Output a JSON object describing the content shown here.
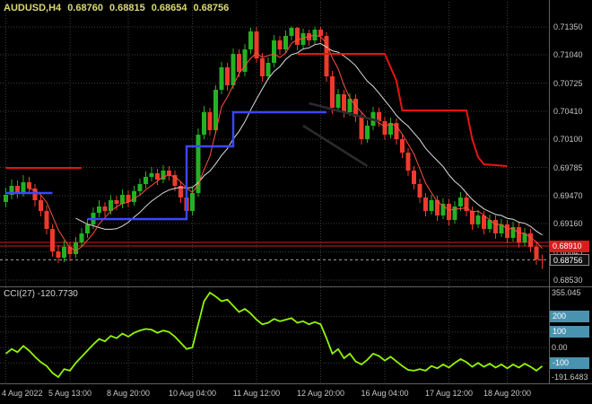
{
  "header": {
    "symbol": "AUDUSD,H4",
    "open": "0.68760",
    "high": "0.68815",
    "low": "0.68654",
    "close": "0.68756"
  },
  "colors": {
    "background": "#000000",
    "grid": "#3c3c3c",
    "separator": "#606060",
    "axis_text": "#c6c6c6",
    "header_text": "#d9d973",
    "up_candle": "#23b123",
    "down_candle": "#ec3b2d",
    "blue_step": "#3c46ff",
    "red_step": "#e81414",
    "ma_fast": "#ff5040",
    "ma_slow": "#dcdcdc",
    "trendline": "#2b2b2b",
    "hline": "#cf1d1d",
    "bid_line": "#a8a8a8",
    "cci_line": "#90f500",
    "level_badge": "#4a93b0",
    "ask_badge": "#d51f1f",
    "bid_badge": "#111111"
  },
  "chart_data": {
    "type": "candlestick",
    "symbol": "AUDUSD",
    "timeframe": "H4",
    "title": "AUDUSD,H4 0.68760 0.68815 0.68654 0.68756",
    "price_axis": {
      "top": 0.7135,
      "bottom": 0.6853,
      "ticks": [
        0.7135,
        0.7104,
        0.70725,
        0.7041,
        0.701,
        0.69785,
        0.6947,
        0.6916,
        0.68845,
        0.6853
      ]
    },
    "time_axis": [
      {
        "text": "4 Aug 2022",
        "index": 0
      },
      {
        "text": "5 Aug 13:00",
        "index": 11
      },
      {
        "text": "8 Aug 20:00",
        "index": 21
      },
      {
        "text": "10 Aug 04:00",
        "index": 32
      },
      {
        "text": "11 Aug 12:00",
        "index": 43
      },
      {
        "text": "12 Aug 20:00",
        "index": 54
      },
      {
        "text": "16 Aug 04:00",
        "index": 65
      },
      {
        "text": "17 Aug 12:00",
        "index": 76
      },
      {
        "text": "18 Aug 20:00",
        "index": 86
      }
    ],
    "candles": [
      [
        0.694,
        0.6956,
        0.6934,
        0.6948
      ],
      [
        0.6948,
        0.6965,
        0.6943,
        0.6958
      ],
      [
        0.6958,
        0.6964,
        0.6944,
        0.695
      ],
      [
        0.695,
        0.697,
        0.6946,
        0.6962
      ],
      [
        0.6962,
        0.6968,
        0.6949,
        0.6955
      ],
      [
        0.6955,
        0.696,
        0.6935,
        0.6942
      ],
      [
        0.6942,
        0.6948,
        0.6924,
        0.693
      ],
      [
        0.693,
        0.6936,
        0.6904,
        0.691
      ],
      [
        0.691,
        0.6915,
        0.6879,
        0.6885
      ],
      [
        0.6885,
        0.6892,
        0.6872,
        0.6878
      ],
      [
        0.6878,
        0.6897,
        0.6873,
        0.689
      ],
      [
        0.689,
        0.6895,
        0.6874,
        0.6882
      ],
      [
        0.6882,
        0.6901,
        0.6878,
        0.6895
      ],
      [
        0.6895,
        0.6911,
        0.689,
        0.6905
      ],
      [
        0.6905,
        0.6921,
        0.69,
        0.6915
      ],
      [
        0.6915,
        0.6934,
        0.691,
        0.6928
      ],
      [
        0.6928,
        0.6942,
        0.6923,
        0.6935
      ],
      [
        0.6935,
        0.694,
        0.6924,
        0.693
      ],
      [
        0.693,
        0.6948,
        0.6926,
        0.6942
      ],
      [
        0.6942,
        0.6947,
        0.6931,
        0.6938
      ],
      [
        0.6938,
        0.6954,
        0.6933,
        0.6948
      ],
      [
        0.6948,
        0.6953,
        0.6934,
        0.694
      ],
      [
        0.694,
        0.6958,
        0.6936,
        0.6952
      ],
      [
        0.6952,
        0.6966,
        0.6947,
        0.696
      ],
      [
        0.696,
        0.6974,
        0.6955,
        0.6968
      ],
      [
        0.6968,
        0.6979,
        0.6963,
        0.6972
      ],
      [
        0.6972,
        0.6977,
        0.6959,
        0.6965
      ],
      [
        0.6965,
        0.6981,
        0.6961,
        0.6975
      ],
      [
        0.6975,
        0.698,
        0.6964,
        0.697
      ],
      [
        0.697,
        0.6975,
        0.6952,
        0.6958
      ],
      [
        0.6958,
        0.6963,
        0.6939,
        0.6945
      ],
      [
        0.6945,
        0.695,
        0.6923,
        0.693
      ],
      [
        0.693,
        0.6956,
        0.6925,
        0.695
      ],
      [
        0.695,
        0.7022,
        0.6946,
        0.7015
      ],
      [
        0.7015,
        0.7047,
        0.701,
        0.704
      ],
      [
        0.704,
        0.7045,
        0.7014,
        0.702
      ],
      [
        0.702,
        0.707,
        0.7016,
        0.7065
      ],
      [
        0.7065,
        0.7096,
        0.706,
        0.709
      ],
      [
        0.709,
        0.7095,
        0.7064,
        0.707
      ],
      [
        0.707,
        0.7111,
        0.7066,
        0.7105
      ],
      [
        0.7105,
        0.711,
        0.7079,
        0.7085
      ],
      [
        0.7085,
        0.7116,
        0.708,
        0.711
      ],
      [
        0.711,
        0.7134,
        0.7105,
        0.713
      ],
      [
        0.713,
        0.7135,
        0.7095,
        0.71
      ],
      [
        0.71,
        0.7106,
        0.7074,
        0.708
      ],
      [
        0.708,
        0.7101,
        0.7076,
        0.7095
      ],
      [
        0.7095,
        0.7126,
        0.709,
        0.712
      ],
      [
        0.712,
        0.7125,
        0.7104,
        0.711
      ],
      [
        0.711,
        0.7131,
        0.7106,
        0.7125
      ],
      [
        0.7125,
        0.7136,
        0.712,
        0.7134
      ],
      [
        0.7134,
        0.7135,
        0.7109,
        0.7115
      ],
      [
        0.7115,
        0.7133,
        0.7111,
        0.7128
      ],
      [
        0.7128,
        0.7132,
        0.7114,
        0.712
      ],
      [
        0.712,
        0.71355,
        0.7116,
        0.7132
      ],
      [
        0.7132,
        0.7135,
        0.7118,
        0.7125
      ],
      [
        0.7125,
        0.7129,
        0.7074,
        0.708
      ],
      [
        0.708,
        0.7086,
        0.7038,
        0.7045
      ],
      [
        0.7045,
        0.7066,
        0.704,
        0.706
      ],
      [
        0.706,
        0.7065,
        0.7034,
        0.704
      ],
      [
        0.704,
        0.7061,
        0.7036,
        0.7055
      ],
      [
        0.7055,
        0.706,
        0.7029,
        0.7035
      ],
      [
        0.7035,
        0.704,
        0.7004,
        0.701
      ],
      [
        0.701,
        0.7031,
        0.7006,
        0.7025
      ],
      [
        0.7025,
        0.7046,
        0.702,
        0.704
      ],
      [
        0.704,
        0.7045,
        0.7024,
        0.703
      ],
      [
        0.703,
        0.7035,
        0.7009,
        0.7015
      ],
      [
        0.7015,
        0.7034,
        0.7011,
        0.7028
      ],
      [
        0.7028,
        0.7033,
        0.7004,
        0.701
      ],
      [
        0.701,
        0.7015,
        0.6989,
        0.6995
      ],
      [
        0.6995,
        0.7,
        0.6969,
        0.6975
      ],
      [
        0.6975,
        0.698,
        0.6954,
        0.696
      ],
      [
        0.696,
        0.6966,
        0.6939,
        0.6945
      ],
      [
        0.6945,
        0.695,
        0.6924,
        0.693
      ],
      [
        0.693,
        0.6948,
        0.6926,
        0.6942
      ],
      [
        0.6942,
        0.6947,
        0.6919,
        0.6925
      ],
      [
        0.6925,
        0.6944,
        0.6921,
        0.6938
      ],
      [
        0.6938,
        0.6943,
        0.6914,
        0.692
      ],
      [
        0.692,
        0.6941,
        0.6916,
        0.6935
      ],
      [
        0.6935,
        0.6951,
        0.693,
        0.6945
      ],
      [
        0.6945,
        0.695,
        0.6924,
        0.693
      ],
      [
        0.693,
        0.6935,
        0.6909,
        0.6915
      ],
      [
        0.6915,
        0.6931,
        0.6911,
        0.6925
      ],
      [
        0.6925,
        0.693,
        0.6904,
        0.691
      ],
      [
        0.691,
        0.6926,
        0.6906,
        0.692
      ],
      [
        0.692,
        0.6925,
        0.6899,
        0.6905
      ],
      [
        0.6905,
        0.6921,
        0.6901,
        0.6915
      ],
      [
        0.6915,
        0.692,
        0.6894,
        0.69
      ],
      [
        0.69,
        0.6918,
        0.6896,
        0.6912
      ],
      [
        0.6912,
        0.6917,
        0.6889,
        0.6895
      ],
      [
        0.6895,
        0.6911,
        0.6891,
        0.6905
      ],
      [
        0.6905,
        0.691,
        0.6884,
        0.689
      ],
      [
        0.689,
        0.6895,
        0.687,
        0.6876
      ],
      [
        0.6876,
        0.68815,
        0.68654,
        0.68756
      ]
    ],
    "overlays": {
      "ma_fast_period": 5,
      "ma_slow_period": 13,
      "blue_step_segments": [
        [
          [
            0,
            0.695
          ],
          [
            8,
            0.695
          ]
        ],
        [
          [
            14,
            0.6921
          ],
          [
            31,
            0.6921
          ],
          [
            31,
            0.7002
          ],
          [
            39,
            0.7002
          ],
          [
            39,
            0.704
          ],
          [
            55,
            0.704
          ]
        ]
      ],
      "red_step_segments": [
        [
          [
            0,
            0.6978
          ],
          [
            13,
            0.6978
          ]
        ],
        [
          [
            50,
            0.7105
          ],
          [
            65,
            0.7105
          ],
          [
            66,
            0.709
          ],
          [
            67,
            0.7075
          ],
          [
            68,
            0.7042
          ],
          [
            79,
            0.7042
          ],
          [
            80,
            0.701
          ],
          [
            81,
            0.699
          ],
          [
            82,
            0.6982
          ],
          [
            86,
            0.698
          ]
        ]
      ],
      "trendlines": [
        {
          "from": [
            52,
            0.705
          ],
          "to": [
            64,
            0.703
          ]
        },
        {
          "from": [
            51,
            0.7025
          ],
          "to": [
            62,
            0.698
          ]
        }
      ],
      "hlines": [
        {
          "price": 0.6895
        },
        {
          "price": 0.6891
        }
      ]
    },
    "ask": {
      "price": 0.6891,
      "label": "0.68910"
    },
    "bid": {
      "price": 0.68756,
      "label": "0.68756"
    },
    "cci": {
      "label": "CCI(27) -120.7730",
      "period": 27,
      "current": -120.773,
      "max": 355.045,
      "min": -191.6483,
      "max_label": "355.045",
      "min_label": "-191.6483",
      "zero_label": "0.00",
      "levels": [
        {
          "value": 200,
          "label": "200"
        },
        {
          "value": 100,
          "label": "100"
        },
        {
          "value": -100,
          "label": "-100"
        }
      ],
      "zero_level": 0,
      "values": [
        -40,
        -10,
        -30,
        10,
        -20,
        -60,
        -95,
        -120,
        -165,
        -191.6483,
        -140,
        -150,
        -100,
        -60,
        -20,
        20,
        55,
        40,
        75,
        60,
        90,
        70,
        95,
        110,
        120,
        115,
        95,
        110,
        100,
        70,
        30,
        -10,
        0,
        150,
        300,
        355.045,
        330,
        300,
        310,
        270,
        230,
        250,
        220,
        180,
        150,
        160,
        185,
        170,
        180,
        190,
        160,
        170,
        150,
        165,
        150,
        60,
        -40,
        -10,
        -70,
        -40,
        -90,
        -110,
        -80,
        -40,
        -55,
        -85,
        -60,
        -90,
        -120,
        -145,
        -150,
        -140,
        -150,
        -120,
        -135,
        -110,
        -130,
        -100,
        -75,
        -95,
        -125,
        -100,
        -125,
        -105,
        -130,
        -110,
        -135,
        -110,
        -130,
        -105,
        -125,
        -150,
        -120.773
      ]
    }
  }
}
